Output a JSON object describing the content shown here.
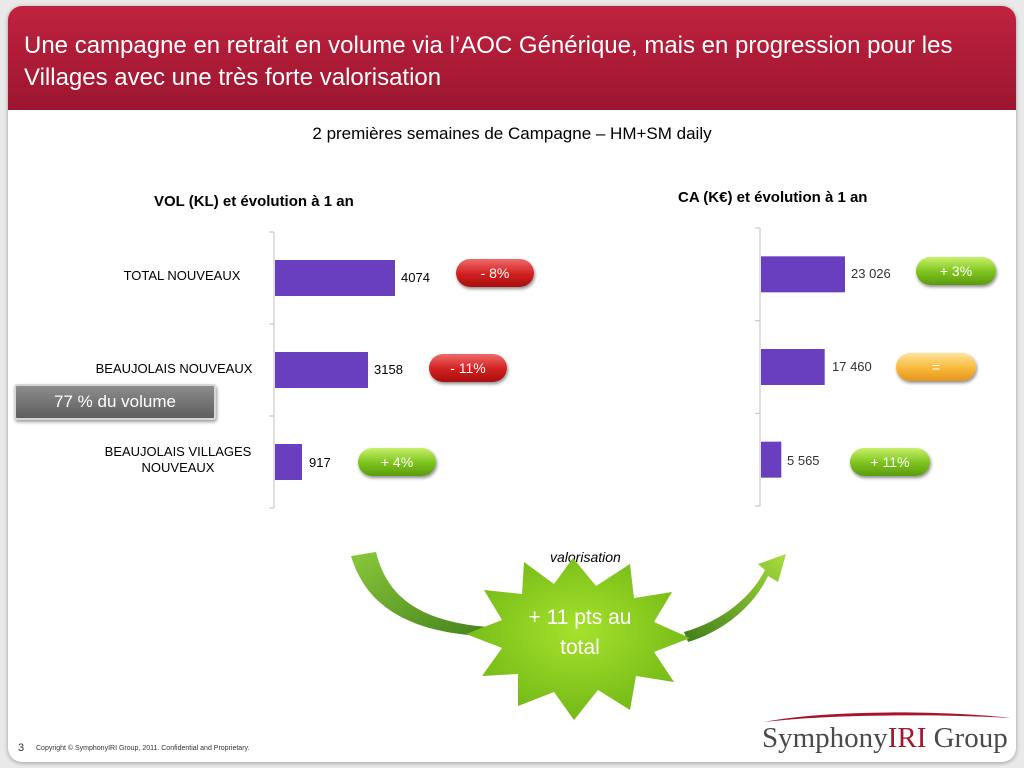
{
  "title": "Une campagne en retrait en volume via l’AOC Générique, mais en progression pour les Villages avec une très forte valorisation",
  "subtitle": "2 premières semaines de Campagne – HM+SM daily",
  "chart_data": [
    {
      "type": "bar",
      "orientation": "horizontal",
      "title": "VOL (KL) et évolution à 1 an",
      "categories": [
        "TOTAL NOUVEAUX",
        "BEAUJOLAIS NOUVEAUX",
        "BEAUJOLAIS VILLAGES NOUVEAUX"
      ],
      "values": [
        4074,
        3158,
        917
      ],
      "value_labels": [
        "4074",
        "3158",
        "917"
      ],
      "evolution": [
        "- 8%",
        "- 11%",
        "+ 4%"
      ],
      "bar_color": "#6a3fbf"
    },
    {
      "type": "bar",
      "orientation": "horizontal",
      "title": "CA  (K€) et évolution à 1 an",
      "categories": [
        "TOTAL NOUVEAUX",
        "BEAUJOLAIS NOUVEAUX",
        "BEAUJOLAIS VILLAGES NOUVEAUX"
      ],
      "values": [
        23026,
        17460,
        5565
      ],
      "value_labels": [
        "23 026",
        "17 460",
        "5 565"
      ],
      "evolution": [
        "+ 3%",
        "=",
        "+ 11%"
      ],
      "bar_color": "#6a3fbf"
    }
  ],
  "callout": {
    "volume_share": "77 % du volume",
    "valorisation": "valorisation",
    "starburst_text": "+ 11 pts au total"
  },
  "colors": {
    "title_bar": "#b01c38",
    "badge_red": "#d01f1f",
    "badge_green": "#7cc21d",
    "badge_orange": "#f7b83a",
    "starburst": "#8ed11d"
  },
  "footer": {
    "page_number": "3",
    "copyright": "Copyright © SymphonyIRI Group, 2011. Confidential and Proprietary.",
    "logo_part1": "Symphony",
    "logo_part2": "IRI",
    "logo_part3": " Group"
  }
}
